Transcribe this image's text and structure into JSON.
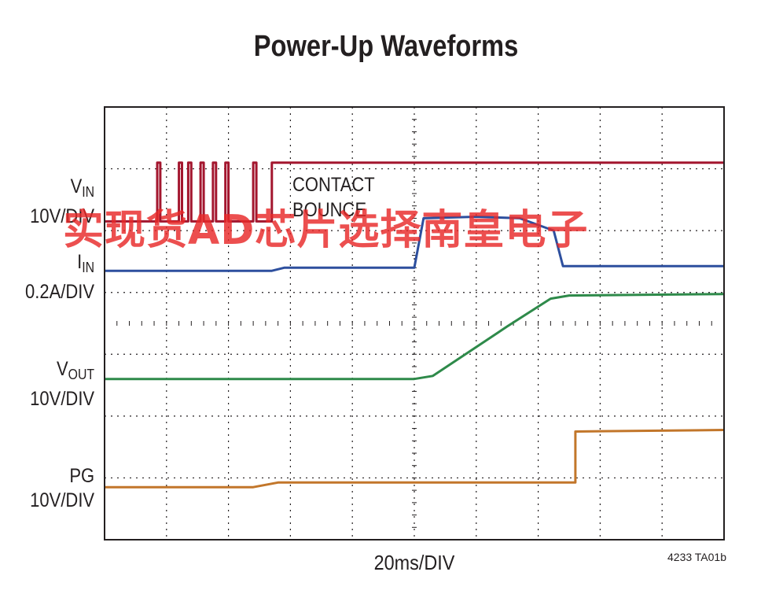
{
  "chart_data": {
    "type": "line",
    "title": "Power-Up Waveforms",
    "xlabel": "20ms/DIV",
    "x_divisions": 10,
    "y_divisions": 14,
    "grid": true,
    "xlim": [
      0,
      10
    ],
    "ylim": [
      0,
      14
    ],
    "series": [
      {
        "name": "V",
        "name_sub": "IN",
        "scale": "10V/DIV",
        "color": "#a3162e",
        "x": [
          0,
          0.85,
          0.85,
          0.9,
          0.9,
          1.2,
          1.2,
          1.25,
          1.25,
          1.35,
          1.35,
          1.4,
          1.4,
          1.55,
          1.55,
          1.6,
          1.6,
          1.75,
          1.75,
          1.8,
          1.8,
          1.95,
          1.95,
          2.0,
          2.0,
          2.4,
          2.4,
          2.45,
          2.45,
          2.7,
          2.7,
          10
        ],
        "y": [
          10.3,
          10.3,
          12.2,
          12.2,
          10.3,
          10.3,
          12.2,
          12.2,
          10.3,
          10.3,
          12.2,
          12.2,
          10.3,
          10.3,
          12.2,
          12.2,
          10.3,
          10.3,
          12.2,
          12.2,
          10.3,
          10.3,
          12.2,
          12.2,
          10.3,
          10.3,
          12.2,
          12.2,
          10.3,
          10.3,
          12.2,
          12.2
        ]
      },
      {
        "name": "I",
        "name_sub": "IN",
        "scale": "0.2A/DIV",
        "color": "#2d4f9e",
        "x": [
          0,
          2.7,
          2.9,
          4.9,
          5.0,
          5.15,
          6.0,
          6.7,
          7.25,
          7.4,
          10
        ],
        "y": [
          8.7,
          8.7,
          8.8,
          8.8,
          8.8,
          10.4,
          10.45,
          10.4,
          10.0,
          8.85,
          8.85
        ]
      },
      {
        "name": "V",
        "name_sub": "OUT",
        "scale": "10V/DIV",
        "color": "#2e8a4a",
        "x": [
          0,
          5.0,
          5.3,
          6.5,
          7.2,
          7.5,
          10
        ],
        "y": [
          5.2,
          5.2,
          5.3,
          6.9,
          7.8,
          7.9,
          7.95
        ]
      },
      {
        "name": "PG",
        "scale": "10V/DIV",
        "color": "#c2762a",
        "x": [
          0,
          2.4,
          2.8,
          7.6,
          7.6,
          10
        ],
        "y": [
          1.7,
          1.7,
          1.85,
          1.85,
          3.5,
          3.55
        ]
      }
    ],
    "annotations": [
      "CONTACT",
      "BOUNCE"
    ],
    "figure_code": "4233 TA01b"
  },
  "watermark": "实现货AD芯片选择南皇电子"
}
